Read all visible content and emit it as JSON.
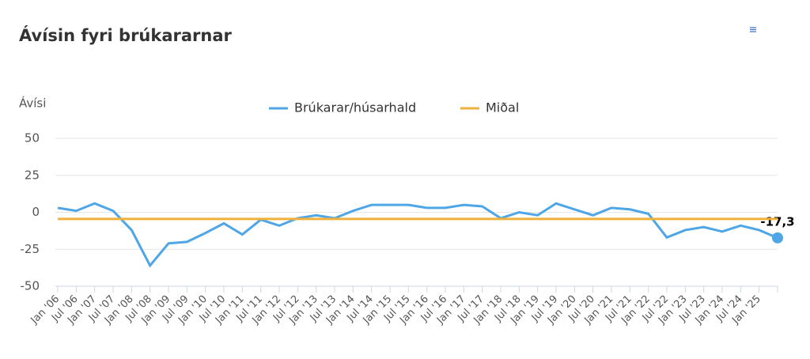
{
  "chart_data": {
    "type": "line",
    "title": "Ávísin fyri brúkararnar",
    "ylabel": "Ávísi",
    "categories": [
      "Jan '06",
      "Jul '06",
      "Jan '07",
      "Jul '07",
      "Jan '08",
      "Jul '08",
      "Jan '09",
      "Jul '09",
      "Jan '10",
      "Jul '10",
      "Jan '11",
      "Jul '11",
      "Jan '12",
      "Jul '12",
      "Jan '13",
      "Jul '13",
      "Jan '14",
      "Jul '14",
      "Jan '15",
      "Jul '15",
      "Jan '16",
      "Jul '16",
      "Jan '17",
      "Jul '17",
      "Jan '18",
      "Jul '18",
      "Jan '19",
      "Jul '19",
      "Jan '20",
      "Jul '20",
      "Jan '21",
      "Jul '21",
      "Jan '22",
      "Jul '22",
      "Jan '23",
      "Jul '23",
      "Jan '24",
      "Jul '24",
      "Jan '25",
      null
    ],
    "series": [
      {
        "name": "Brúkarar/húsarhald",
        "color": "#4ea6e6",
        "values": [
          3,
          1,
          6,
          1,
          -12,
          -36,
          -21,
          -20,
          -14,
          -7.5,
          -15,
          -5,
          -9,
          -4,
          -2,
          -4,
          1,
          5,
          5,
          5,
          3,
          3,
          5,
          4,
          -4,
          0,
          -2,
          6,
          2,
          -2,
          3,
          2,
          -1,
          -17,
          -12,
          -10,
          -13,
          -9,
          -12,
          -17.3
        ],
        "value_labels": [
          null,
          null,
          null,
          null,
          null,
          null,
          null,
          null,
          null,
          null,
          null,
          null,
          null,
          null,
          null,
          null,
          null,
          null,
          null,
          null,
          null,
          null,
          null,
          null,
          null,
          null,
          null,
          null,
          null,
          null,
          null,
          null,
          null,
          null,
          null,
          null,
          null,
          null,
          null,
          "-17,3"
        ]
      },
      {
        "name": "Miðal",
        "color": "#f0b13c",
        "values": [
          -4.5,
          -4.5,
          -4.5,
          -4.5,
          -4.5,
          -4.5,
          -4.5,
          -4.5,
          -4.5,
          -4.5,
          -4.5,
          -4.5,
          -4.5,
          -4.5,
          -4.5,
          -4.5,
          -4.5,
          -4.5,
          -4.5,
          -4.5,
          -4.5,
          -4.5,
          -4.5,
          -4.5,
          -4.5,
          -4.5,
          -4.5,
          -4.5,
          -4.5,
          -4.5,
          -4.5,
          -4.5,
          -4.5,
          -4.5,
          -4.5,
          -4.5,
          -4.5,
          -4.5,
          -4.5,
          -4.5
        ]
      }
    ],
    "ylim": [
      -50,
      50
    ],
    "yticks": [
      -50,
      -25,
      0,
      25,
      50
    ],
    "grid": true
  }
}
